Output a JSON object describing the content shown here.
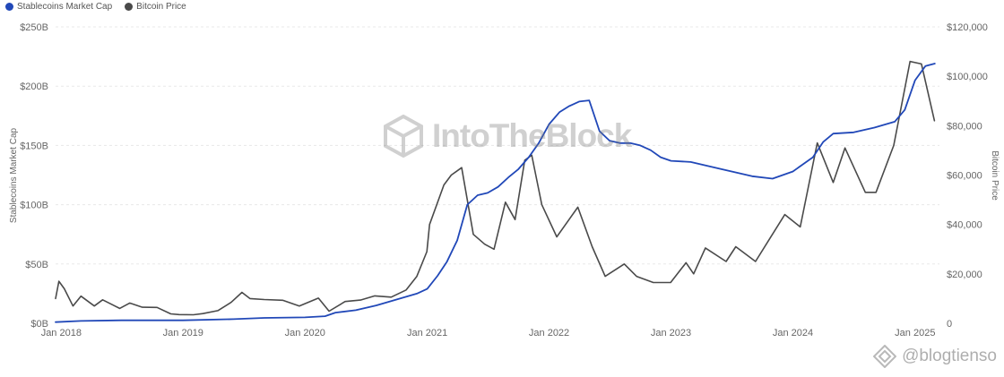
{
  "legend": [
    {
      "name": "Stablecoins Market Cap",
      "color": "#2148b8"
    },
    {
      "name": "Bitcoin Price",
      "color": "#4a4a4a"
    }
  ],
  "watermark": "IntoTheBlock",
  "credit": "@blogtienso",
  "chart_data": {
    "type": "line",
    "x_ticks": [
      "Jan 2018",
      "Jan 2019",
      "Jan 2020",
      "Jan 2021",
      "Jan 2022",
      "Jan 2023",
      "Jan 2024",
      "Jan 2025"
    ],
    "left_axis": {
      "label": "Stablecoins Market Cap",
      "ticks": [
        "$0B",
        "$50B",
        "$100B",
        "$150B",
        "$200B",
        "$250B"
      ],
      "ylim": [
        0,
        250
      ]
    },
    "right_axis": {
      "label": "Bitcoin Price",
      "ticks": [
        "0",
        "$20,000",
        "$40,000",
        "$60,000",
        "$80,000",
        "$100,000",
        "$120,000"
      ],
      "ylim": [
        0,
        120000
      ]
    },
    "grid": true,
    "series": [
      {
        "name": "Stablecoins Market Cap",
        "axis": "left",
        "color": "#2148b8",
        "points": [
          [
            "2017-12-15",
            1
          ],
          [
            "2018-03",
            2
          ],
          [
            "2018-07",
            2.5
          ],
          [
            "2019-01",
            2.5
          ],
          [
            "2019-06",
            3.5
          ],
          [
            "2019-09",
            4.5
          ],
          [
            "2020-01",
            5
          ],
          [
            "2020-03",
            6
          ],
          [
            "2020-04",
            9
          ],
          [
            "2020-06",
            11
          ],
          [
            "2020-08",
            15
          ],
          [
            "2020-10",
            20
          ],
          [
            "2020-12",
            25
          ],
          [
            "2021-01",
            29
          ],
          [
            "2021-02",
            40
          ],
          [
            "2021-03",
            52
          ],
          [
            "2021-04",
            70
          ],
          [
            "2021-05",
            100
          ],
          [
            "2021-06",
            108
          ],
          [
            "2021-07",
            110
          ],
          [
            "2021-08",
            115
          ],
          [
            "2021-09",
            123
          ],
          [
            "2021-10",
            130
          ],
          [
            "2021-11",
            140
          ],
          [
            "2021-12",
            152
          ],
          [
            "2022-01",
            168
          ],
          [
            "2022-02",
            178
          ],
          [
            "2022-03",
            183
          ],
          [
            "2022-04",
            187
          ],
          [
            "2022-05",
            188
          ],
          [
            "2022-06",
            162
          ],
          [
            "2022-07",
            154
          ],
          [
            "2022-08",
            152
          ],
          [
            "2022-09",
            152
          ],
          [
            "2022-10",
            150
          ],
          [
            "2022-11",
            146
          ],
          [
            "2022-12",
            140
          ],
          [
            "2023-01",
            137
          ],
          [
            "2023-03",
            136
          ],
          [
            "2023-06",
            130
          ],
          [
            "2023-09",
            124
          ],
          [
            "2023-11",
            122
          ],
          [
            "2024-01",
            128
          ],
          [
            "2024-03",
            140
          ],
          [
            "2024-04",
            153
          ],
          [
            "2024-05",
            160
          ],
          [
            "2024-07",
            161
          ],
          [
            "2024-09",
            165
          ],
          [
            "2024-11",
            170
          ],
          [
            "2024-12",
            180
          ],
          [
            "2025-01",
            205
          ],
          [
            "2025-02",
            217
          ],
          [
            "2025-03",
            219
          ]
        ]
      },
      {
        "name": "Bitcoin Price",
        "axis": "right",
        "color": "#4a4a4a",
        "points": [
          [
            "2017-12-15",
            10000
          ],
          [
            "2017-12-25",
            17000
          ],
          [
            "2018-01-10",
            14000
          ],
          [
            "2018-02-05",
            7000
          ],
          [
            "2018-03-01",
            11000
          ],
          [
            "2018-04-10",
            7000
          ],
          [
            "2018-05-05",
            9500
          ],
          [
            "2018-06-25",
            6000
          ],
          [
            "2018-07-25",
            8200
          ],
          [
            "2018-09-01",
            6500
          ],
          [
            "2018-10-15",
            6400
          ],
          [
            "2018-11-25",
            3800
          ],
          [
            "2018-12-20",
            3500
          ],
          [
            "2019-02-01",
            3450
          ],
          [
            "2019-03-01",
            3900
          ],
          [
            "2019-04-15",
            5100
          ],
          [
            "2019-05-25",
            8500
          ],
          [
            "2019-06-26",
            12500
          ],
          [
            "2019-07-20",
            10000
          ],
          [
            "2019-09-01",
            9600
          ],
          [
            "2019-10-26",
            9300
          ],
          [
            "2019-12-15",
            7000
          ],
          [
            "2020-02-10",
            10200
          ],
          [
            "2020-03-13",
            4900
          ],
          [
            "2020-04-30",
            8800
          ],
          [
            "2020-06-15",
            9400
          ],
          [
            "2020-07-28",
            11100
          ],
          [
            "2020-09-15",
            10600
          ],
          [
            "2020-10-30",
            13500
          ],
          [
            "2020-12-01",
            19000
          ],
          [
            "2020-12-31",
            29000
          ],
          [
            "2021-01-08",
            40000
          ],
          [
            "2021-02-20",
            56000
          ],
          [
            "2021-03-14",
            60000
          ],
          [
            "2021-04-14",
            63000
          ],
          [
            "2021-05-19",
            36000
          ],
          [
            "2021-06-22",
            32000
          ],
          [
            "2021-07-20",
            30000
          ],
          [
            "2021-08-23",
            49000
          ],
          [
            "2021-09-21",
            42000
          ],
          [
            "2021-10-20",
            66000
          ],
          [
            "2021-11-10",
            68000
          ],
          [
            "2021-12-10",
            48000
          ],
          [
            "2022-01-24",
            35000
          ],
          [
            "2022-03-28",
            47000
          ],
          [
            "2022-05-10",
            31000
          ],
          [
            "2022-06-18",
            19000
          ],
          [
            "2022-08-14",
            24000
          ],
          [
            "2022-09-20",
            19000
          ],
          [
            "2022-11-09",
            16500
          ],
          [
            "2022-12-31",
            16500
          ],
          [
            "2023-02-15",
            24500
          ],
          [
            "2023-03-10",
            20000
          ],
          [
            "2023-04-14",
            30500
          ],
          [
            "2023-06-15",
            25000
          ],
          [
            "2023-07-14",
            31000
          ],
          [
            "2023-09-11",
            25000
          ],
          [
            "2023-10-25",
            34500
          ],
          [
            "2023-12-08",
            44000
          ],
          [
            "2024-01-23",
            39000
          ],
          [
            "2024-03-14",
            73000
          ],
          [
            "2024-05-01",
            57000
          ],
          [
            "2024-06-05",
            71000
          ],
          [
            "2024-08-05",
            53000
          ],
          [
            "2024-09-06",
            53000
          ],
          [
            "2024-10-29",
            72000
          ],
          [
            "2024-12-17",
            106000
          ],
          [
            "2025-01-20",
            105000
          ],
          [
            "2025-02-28",
            82000
          ]
        ]
      }
    ]
  }
}
